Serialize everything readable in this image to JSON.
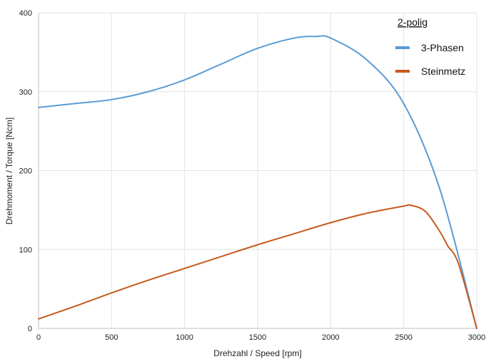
{
  "chart_data": {
    "type": "line",
    "title": "",
    "xlabel": "Drehzahl / Speed [rpm]",
    "ylabel": "Drehmoment / Torque [Ncm]",
    "xlim": [
      0,
      3000
    ],
    "ylim": [
      0,
      400
    ],
    "x_ticks": [
      "0",
      "500",
      "1000",
      "1500",
      "2000",
      "2500",
      "3000"
    ],
    "y_ticks": [
      "0",
      "100",
      "200",
      "300",
      "400"
    ],
    "grid": true,
    "legend": {
      "title": "2-polig",
      "placement": "top-right"
    },
    "series": [
      {
        "name": "3-Phasen",
        "color": "#5b9bd5",
        "x": [
          0,
          250,
          500,
          750,
          1000,
          1250,
          1500,
          1750,
          1900,
          2000,
          2250,
          2500,
          2750,
          3000
        ],
        "y": [
          280,
          285,
          290,
          300,
          315,
          335,
          355,
          368,
          370,
          368,
          340,
          285,
          175,
          0
        ]
      },
      {
        "name": "Steinmetz",
        "color": "#c65a1e",
        "x": [
          0,
          250,
          500,
          750,
          1000,
          1250,
          1500,
          1750,
          2000,
          2250,
          2500,
          2550,
          2650,
          2750,
          2800,
          2875,
          3000
        ],
        "y": [
          12,
          28,
          45,
          61,
          76,
          91,
          106,
          120,
          134,
          146,
          155,
          156,
          148,
          122,
          105,
          82,
          0
        ]
      }
    ]
  }
}
